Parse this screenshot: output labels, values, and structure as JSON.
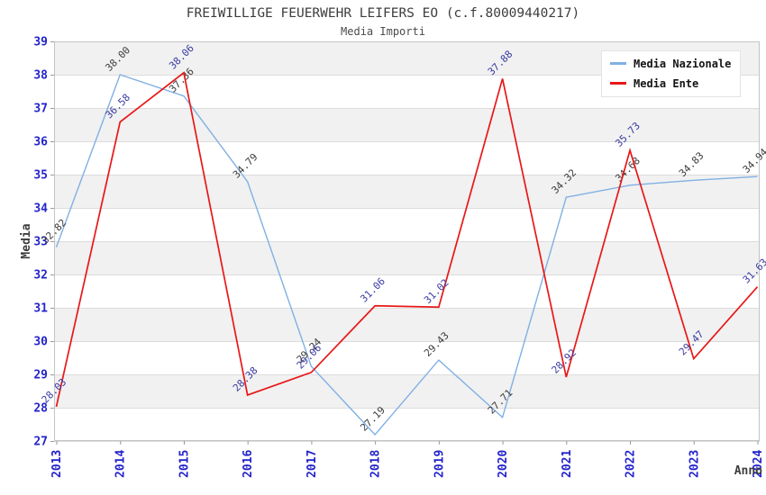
{
  "title": "FREIWILLIGE FEUERWEHR LEIFERS EO (c.f.80009440217)",
  "subtitle": "Media Importi",
  "chart_data": {
    "type": "line",
    "x": [
      "2013",
      "2014",
      "2015",
      "2016",
      "2017",
      "2018",
      "2019",
      "2020",
      "2021",
      "2022",
      "2023",
      "2024"
    ],
    "series": [
      {
        "name": "Media Nazionale",
        "color": "#7fb0e4",
        "label_color": "#3c3c3c",
        "values": [
          32.82,
          38.0,
          37.36,
          34.79,
          29.24,
          27.19,
          29.43,
          27.71,
          34.32,
          34.68,
          34.83,
          34.94
        ]
      },
      {
        "name": "Media Ente",
        "color": "#e81717",
        "label_color": "#3a3aa2",
        "values": [
          28.03,
          36.58,
          38.06,
          28.38,
          29.06,
          31.06,
          31.02,
          37.88,
          28.92,
          35.73,
          29.47,
          31.63
        ]
      }
    ],
    "xlabel": "Anno",
    "ylabel": "Media",
    "ylim": [
      27,
      39
    ],
    "yticks": [
      27,
      28,
      29,
      30,
      31,
      32,
      33,
      34,
      35,
      36,
      37,
      38,
      39
    ],
    "grid": "horizontal gridlines, alternating gray bands",
    "band_color": "#f1f1f1",
    "gridline_color": "#dcdcdc",
    "plot_border_color": "#c4c4c4",
    "tick_label_color": "#2323cb",
    "legend_position": "top-right",
    "point_label_decimals": 2
  }
}
